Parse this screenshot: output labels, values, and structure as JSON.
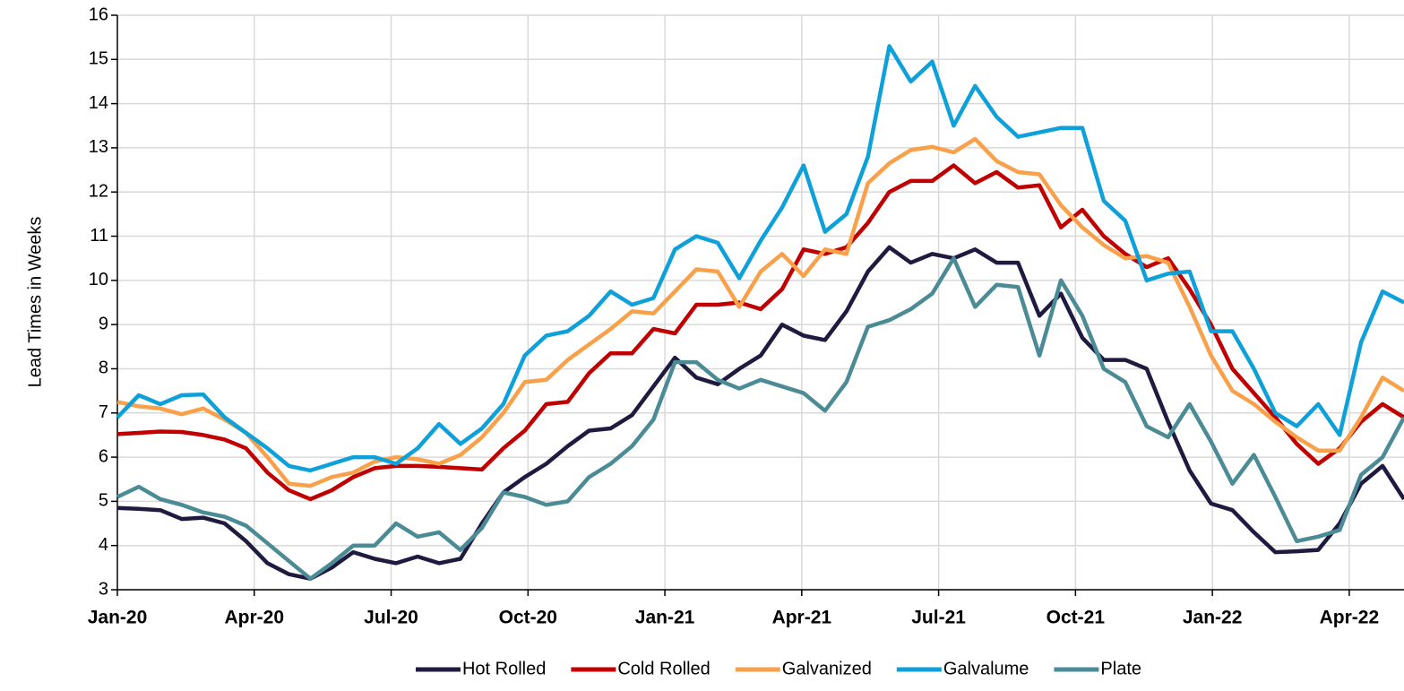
{
  "chart_data": {
    "type": "line",
    "y_label": "Lead Times in Weeks",
    "x": [
      0,
      0.47,
      0.94,
      1.41,
      1.88,
      2.35,
      2.82,
      3.29,
      3.76,
      4.23,
      4.7,
      5.17,
      5.64,
      6.11,
      6.58,
      7.05,
      7.52,
      7.99,
      8.46,
      8.93,
      9.4,
      9.87,
      10.34,
      10.81,
      11.28,
      11.75,
      12.22,
      12.69,
      13.16,
      13.63,
      14.1,
      14.57,
      15.04,
      15.51,
      15.98,
      16.45,
      16.92,
      17.39,
      17.86,
      18.33,
      18.8,
      19.27,
      19.74,
      20.21,
      20.68,
      21.15,
      21.62,
      22.09,
      22.56,
      23.03,
      23.5,
      23.97,
      24.44,
      24.91,
      25.38,
      25.85,
      26.32,
      26.79,
      27.26,
      27.73,
      28.2
    ],
    "xlim": [
      0,
      28.2
    ],
    "xticks": [
      {
        "value": 0,
        "label": "Jan-20"
      },
      {
        "value": 3,
        "label": "Apr-20"
      },
      {
        "value": 6,
        "label": "Jul-20"
      },
      {
        "value": 9,
        "label": "Oct-20"
      },
      {
        "value": 12,
        "label": "Jan-21"
      },
      {
        "value": 15,
        "label": "Apr-21"
      },
      {
        "value": 18,
        "label": "Jul-21"
      },
      {
        "value": 21,
        "label": "Oct-21"
      },
      {
        "value": 24,
        "label": "Jan-22"
      },
      {
        "value": 27,
        "label": "Apr-22"
      }
    ],
    "ylim": [
      3,
      16
    ],
    "yticks": [
      3,
      4,
      5,
      6,
      7,
      8,
      9,
      10,
      11,
      12,
      13,
      14,
      15,
      16
    ],
    "grid": true,
    "legend": "bottom",
    "series": [
      {
        "name": "Hot Rolled",
        "color": "#1f1a3f",
        "values": [
          4.85,
          4.83,
          4.8,
          4.6,
          4.63,
          4.5,
          4.1,
          3.6,
          3.35,
          3.25,
          3.5,
          3.85,
          3.7,
          3.6,
          3.75,
          3.6,
          3.7,
          4.5,
          5.2,
          5.55,
          5.85,
          6.25,
          6.6,
          6.65,
          6.95,
          7.6,
          8.25,
          7.8,
          7.65,
          8.0,
          8.3,
          9.0,
          8.75,
          8.65,
          9.3,
          10.2,
          10.75,
          10.4,
          10.6,
          10.5,
          10.7,
          10.4,
          10.4,
          9.2,
          9.7,
          8.7,
          8.2,
          8.2,
          8.0,
          6.8,
          5.7,
          4.95,
          4.8,
          4.3,
          3.85,
          3.87,
          3.9,
          4.5,
          5.4,
          5.8,
          5.05
        ]
      },
      {
        "name": "Cold Rolled",
        "color": "#c00000",
        "values": [
          6.52,
          6.55,
          6.58,
          6.57,
          6.5,
          6.4,
          6.2,
          5.65,
          5.25,
          5.05,
          5.25,
          5.55,
          5.75,
          5.8,
          5.8,
          5.78,
          5.75,
          5.72,
          6.2,
          6.6,
          7.2,
          7.25,
          7.9,
          8.35,
          8.35,
          8.9,
          8.8,
          9.45,
          9.45,
          9.5,
          9.35,
          9.8,
          10.7,
          10.6,
          10.75,
          11.3,
          12.0,
          12.25,
          12.25,
          12.6,
          12.2,
          12.45,
          12.1,
          12.15,
          11.2,
          11.6,
          11.0,
          10.6,
          10.3,
          10.5,
          9.8,
          9.0,
          8.0,
          7.45,
          6.9,
          6.3,
          5.85,
          6.2,
          6.8,
          7.2,
          6.9
        ]
      },
      {
        "name": "Galvanized",
        "color": "#f9a04a",
        "values": [
          7.25,
          7.15,
          7.1,
          6.97,
          7.1,
          6.85,
          6.55,
          6.0,
          5.4,
          5.35,
          5.55,
          5.65,
          5.9,
          6.0,
          5.95,
          5.85,
          6.05,
          6.45,
          7.0,
          7.7,
          7.75,
          8.2,
          8.55,
          8.9,
          9.3,
          9.25,
          9.75,
          10.25,
          10.2,
          9.4,
          10.2,
          10.6,
          10.1,
          10.7,
          10.6,
          12.2,
          12.65,
          12.95,
          13.02,
          12.9,
          13.2,
          12.7,
          12.45,
          12.4,
          11.7,
          11.2,
          10.8,
          10.5,
          10.55,
          10.4,
          9.4,
          8.3,
          7.5,
          7.2,
          6.8,
          6.45,
          6.15,
          6.15,
          6.9,
          7.8,
          7.5
        ]
      },
      {
        "name": "Galvalume",
        "color": "#0ea0d9",
        "values": [
          6.9,
          7.4,
          7.2,
          7.4,
          7.42,
          6.9,
          6.55,
          6.2,
          5.8,
          5.7,
          5.85,
          6.0,
          6.0,
          5.85,
          6.2,
          6.75,
          6.3,
          6.65,
          7.2,
          8.3,
          8.75,
          8.85,
          9.2,
          9.75,
          9.45,
          9.6,
          10.7,
          11.0,
          10.85,
          10.05,
          10.9,
          11.65,
          12.6,
          11.1,
          11.5,
          12.8,
          15.3,
          14.5,
          14.95,
          13.5,
          14.4,
          13.7,
          13.25,
          13.35,
          13.45,
          13.45,
          11.8,
          11.35,
          10.0,
          10.15,
          10.2,
          8.85,
          8.85,
          8.0,
          7.0,
          6.7,
          7.2,
          6.5,
          8.6,
          9.75,
          9.5
        ]
      },
      {
        "name": "Plate",
        "color": "#4a8b96",
        "values": [
          5.1,
          5.33,
          5.05,
          4.92,
          4.75,
          4.65,
          4.45,
          4.05,
          3.65,
          3.25,
          3.6,
          4.0,
          4.0,
          4.5,
          4.2,
          4.3,
          3.9,
          4.4,
          5.2,
          5.1,
          4.92,
          5.0,
          5.55,
          5.85,
          6.25,
          6.85,
          8.15,
          8.15,
          7.75,
          7.55,
          7.75,
          7.6,
          7.45,
          7.05,
          7.7,
          8.95,
          9.1,
          9.35,
          9.7,
          10.5,
          9.4,
          9.9,
          9.85,
          8.3,
          10.0,
          9.2,
          8.0,
          7.7,
          6.7,
          6.45,
          7.2,
          6.35,
          5.4,
          6.05,
          5.1,
          4.1,
          4.2,
          4.35,
          5.6,
          6.0,
          6.9
        ]
      }
    ]
  }
}
